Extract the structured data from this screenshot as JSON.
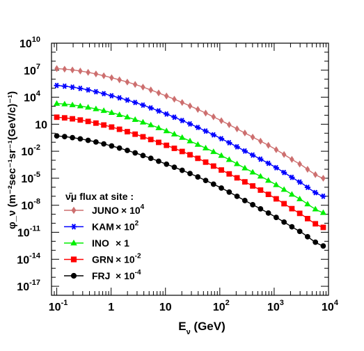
{
  "chart_data": {
    "type": "line",
    "xlabel": {
      "main": "E",
      "sub": "ν",
      "rest": " (GeV)"
    },
    "ylabel": "φ_ν (m⁻²sec⁻¹sr⁻¹(GeV/c)⁻¹)",
    "x_scale": "log",
    "y_scale": "log",
    "xlim": [
      0.08,
      10000
    ],
    "ylim": [
      1e-18,
      10000000000.0
    ],
    "x_ticks": [
      {
        "value": 0.1,
        "label": "10",
        "exp": "-1"
      },
      {
        "value": 1,
        "label": "1",
        "exp": ""
      },
      {
        "value": 10,
        "label": "10",
        "exp": ""
      },
      {
        "value": 100,
        "label": "10",
        "exp": "2"
      },
      {
        "value": 1000,
        "label": "10",
        "exp": "3"
      },
      {
        "value": 10000,
        "label": "10",
        "exp": "4"
      }
    ],
    "y_ticks": [
      {
        "value": 10000000000.0,
        "label": "10",
        "exp": "10"
      },
      {
        "value": 10000000.0,
        "label": "10",
        "exp": "7"
      },
      {
        "value": 10000.0,
        "label": "10",
        "exp": "4"
      },
      {
        "value": 10,
        "label": "10",
        "exp": ""
      },
      {
        "value": 0.01,
        "label": "10",
        "exp": "-2"
      },
      {
        "value": 1e-05,
        "label": "10",
        "exp": "-5"
      },
      {
        "value": 1e-08,
        "label": "10",
        "exp": "-8"
      },
      {
        "value": 1e-11,
        "label": "10",
        "exp": "-11"
      },
      {
        "value": 1e-14,
        "label": "10",
        "exp": "-14"
      },
      {
        "value": 1e-17,
        "label": "10",
        "exp": "-17"
      }
    ],
    "legend": {
      "title": "ν̄μ flux at site :",
      "placement": "bottom-left"
    },
    "series": [
      {
        "name": "JUNO",
        "scale_label": "× 10",
        "scale_exp": "4",
        "color": "#cd6f6f",
        "marker": "diamond",
        "x": [
          0.1,
          0.316,
          1,
          3.16,
          10,
          31.6,
          100,
          316,
          1000,
          3162,
          8000
        ],
        "y": [
          15000000.0,
          7000000.0,
          1500000.0,
          200000.0,
          15000.0,
          800,
          30,
          0.8,
          0.02,
          0.0003,
          1e-05
        ]
      },
      {
        "name": "KAM",
        "scale_label": "× 10",
        "scale_exp": "2",
        "color": "#0000ff",
        "marker": "star",
        "x": [
          0.1,
          0.316,
          1,
          3.16,
          10,
          31.6,
          100,
          316,
          1000,
          3162,
          8000
        ],
        "y": [
          200000.0,
          80000.0,
          15000.0,
          2000.0,
          150,
          8,
          0.3,
          0.008,
          0.0002,
          3e-06,
          1e-07
        ]
      },
      {
        "name": "INO",
        "scale_label": "× 1",
        "scale_exp": "",
        "color": "#00ee00",
        "marker": "triangle",
        "x": [
          0.1,
          0.316,
          1,
          3.16,
          10,
          31.6,
          100,
          316,
          1000,
          3162,
          8000
        ],
        "y": [
          2000,
          900,
          200,
          25,
          2,
          0.1,
          0.004,
          0.0001,
          2.5e-06,
          4e-08,
          1.5e-09
        ]
      },
      {
        "name": "GRN",
        "scale_label": "× 10",
        "scale_exp": "-2",
        "color": "#ff0000",
        "marker": "square",
        "x": [
          0.1,
          0.316,
          1,
          3.16,
          10,
          31.6,
          100,
          316,
          1000,
          3162,
          8000
        ],
        "y": [
          60,
          25,
          5,
          0.6,
          0.05,
          0.003,
          0.0001,
          3e-06,
          7e-08,
          1e-09,
          3.5e-11
        ]
      },
      {
        "name": "FRJ",
        "scale_label": "× 10",
        "scale_exp": "-4",
        "color": "#000000",
        "marker": "circle",
        "x": [
          0.1,
          0.316,
          1,
          3.16,
          10,
          31.6,
          100,
          316,
          1000,
          3162,
          8000
        ],
        "y": [
          0.5,
          0.2,
          0.04,
          0.005,
          0.0004,
          2.5e-05,
          1e-06,
          2.5e-08,
          6e-10,
          1e-11,
          3e-13
        ]
      }
    ]
  }
}
